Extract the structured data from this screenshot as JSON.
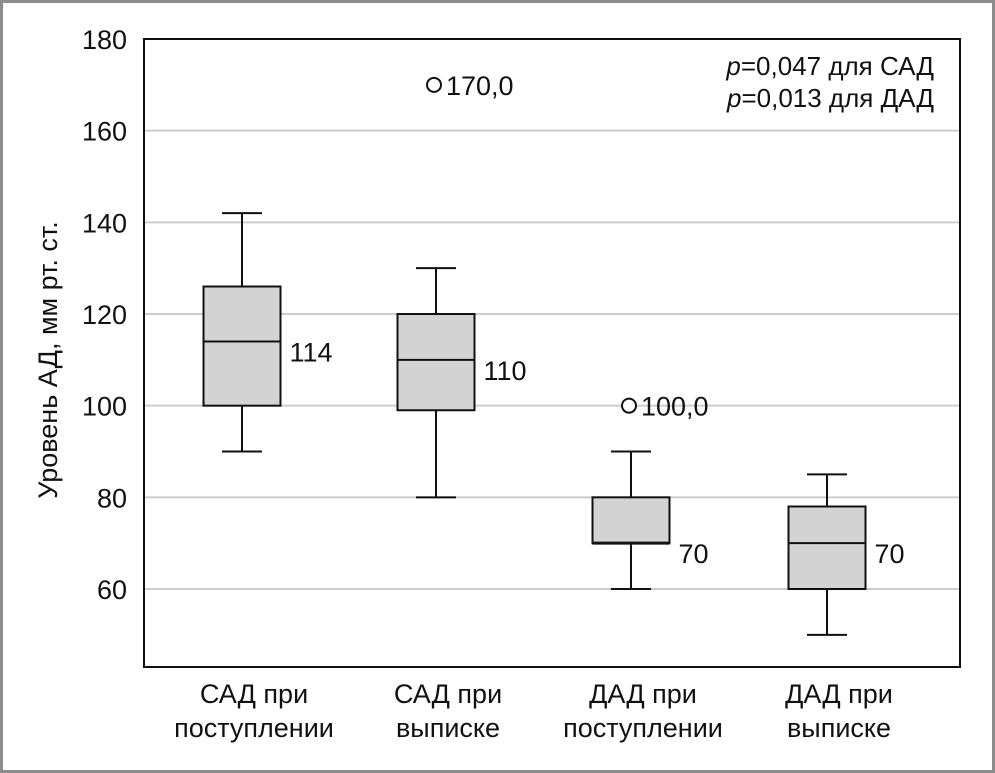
{
  "chart_data": {
    "type": "box",
    "title": "",
    "xlabel": "",
    "ylabel": "Уровень АД, мм рт. ст.",
    "ylim": [
      43,
      180
    ],
    "yticks": [
      60,
      80,
      100,
      120,
      140,
      160,
      180
    ],
    "grid": true,
    "categories": [
      [
        "САД при",
        "поступлении"
      ],
      [
        "САД при",
        "выписке"
      ],
      [
        "ДАД при",
        "поступлении"
      ],
      [
        "ДАД при",
        "выписке"
      ]
    ],
    "boxes": [
      {
        "whisker_low": 90,
        "q1": 100,
        "median": 114,
        "q3": 126,
        "whisker_high": 142,
        "median_label": "114",
        "outliers": []
      },
      {
        "whisker_low": 80,
        "q1": 99,
        "median": 110,
        "q3": 120,
        "whisker_high": 130,
        "median_label": "110",
        "outliers": [
          {
            "value": 170,
            "label": "170,0"
          }
        ]
      },
      {
        "whisker_low": 60,
        "q1": 70,
        "median": 70,
        "q3": 80,
        "whisker_high": 90,
        "median_label": "70",
        "outliers": [
          {
            "value": 100,
            "label": "100,0"
          }
        ]
      },
      {
        "whisker_low": 50,
        "q1": 60,
        "median": 70,
        "q3": 78,
        "whisker_high": 85,
        "median_label": "70",
        "outliers": []
      }
    ],
    "annotations": [
      {
        "italic": "p",
        "text": "=0,047 для САД"
      },
      {
        "italic": "p",
        "text": "=0,013 для ДАД"
      }
    ],
    "colors": {
      "box_fill": "#d3d3d3",
      "grid": "#cccccc",
      "axis": "#111111"
    }
  }
}
